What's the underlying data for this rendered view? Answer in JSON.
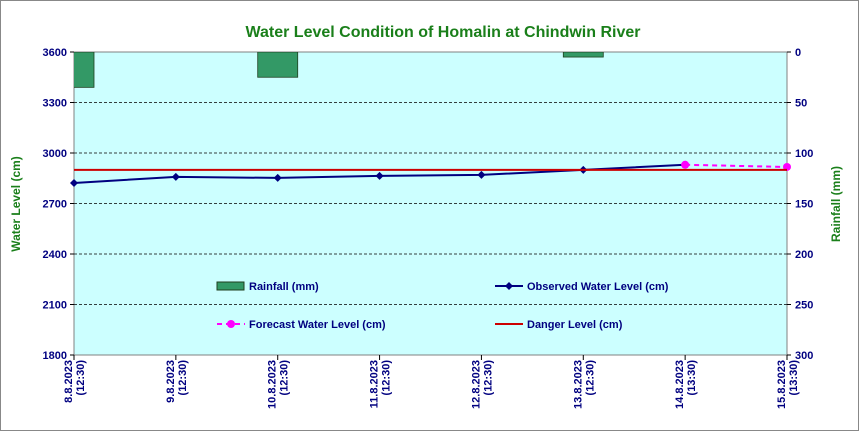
{
  "chart_data": {
    "type": "line",
    "title": "Water Level Condition of Homalin at Chindwin River",
    "y_label": "Water Level (cm)",
    "y2_label": "Rainfall (mm)",
    "categories": [
      "8.8.2023",
      "9.8.2023",
      "10.8.2023",
      "11.8.2023",
      "12.8.2023",
      "13.8.2023",
      "14.8.2023",
      "15.8.2023"
    ],
    "category_times": [
      "(12:30)",
      "(12:30)",
      "(12:30)",
      "(12:30)",
      "(12:30)",
      "(12:30)",
      "(13:30)",
      "(13:30)"
    ],
    "ylim": [
      1800,
      3600
    ],
    "yticks": [
      1800,
      2100,
      2400,
      2700,
      3000,
      3300,
      3600
    ],
    "y2lim": [
      300,
      0
    ],
    "y2ticks": [
      0,
      50,
      100,
      150,
      200,
      250,
      300
    ],
    "grid": true,
    "series": [
      {
        "name": "Rainfall (mm)",
        "type": "bar",
        "axis": "y2",
        "color": "#339966",
        "values": [
          35,
          0,
          25,
          0,
          0,
          5,
          0,
          0
        ]
      },
      {
        "name": "Observed Water Level (cm)",
        "type": "line",
        "color": "#000080",
        "marker": "diamond",
        "values": [
          2822,
          2858,
          2852,
          2864,
          2870,
          2900,
          2930,
          null
        ]
      },
      {
        "name": "Forecast Water Level (cm)",
        "type": "line",
        "color": "#ff00ff",
        "marker": "circle",
        "dashed": true,
        "values": [
          null,
          null,
          null,
          null,
          null,
          null,
          2930,
          2917
        ]
      },
      {
        "name": "Danger Level (cm)",
        "type": "line",
        "color": "#cc0000",
        "values": [
          2900,
          2900,
          2900,
          2900,
          2900,
          2900,
          2900,
          2900
        ]
      }
    ]
  }
}
